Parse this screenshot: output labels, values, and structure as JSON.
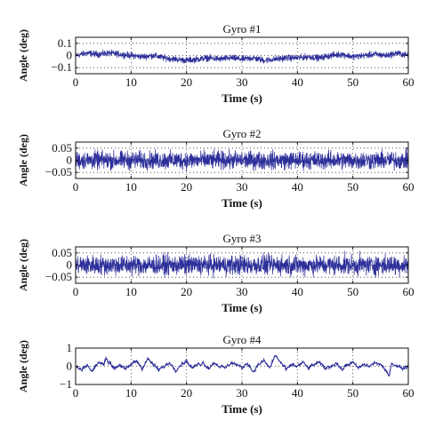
{
  "colors": {
    "series": "#2d2f9a",
    "axis": "#111111",
    "grid": "#333333",
    "background": "#ffffff"
  },
  "chart_data": [
    {
      "type": "line",
      "title": "Gyro #1",
      "xlabel": "Time (s)",
      "ylabel": "Angle (deg)",
      "xlim": [
        0,
        60
      ],
      "ylim": [
        -0.15,
        0.15
      ],
      "xticks": [
        0,
        10,
        20,
        30,
        40,
        50,
        60
      ],
      "xtick_labels": [
        "0",
        "10",
        "20",
        "30",
        "40",
        "50",
        "60"
      ],
      "yticks": [
        -0.1,
        0,
        0.1
      ],
      "ytick_labels": [
        "−0.1",
        "0",
        "0.1"
      ],
      "grid": "dotted",
      "series": [
        {
          "x": [
            0,
            2,
            4,
            6,
            8,
            10,
            12,
            14,
            16,
            18,
            20,
            22,
            24,
            26,
            28,
            30,
            32,
            34,
            36,
            38,
            40,
            42,
            44,
            46,
            48,
            50,
            52,
            54,
            56,
            58,
            60
          ],
          "y": [
            0.0,
            0.02,
            0.01,
            0.02,
            0.01,
            0.0,
            -0.01,
            0.0,
            -0.02,
            -0.03,
            -0.04,
            -0.03,
            -0.02,
            -0.03,
            -0.02,
            -0.03,
            -0.02,
            -0.04,
            -0.03,
            -0.02,
            -0.02,
            -0.01,
            -0.02,
            0.0,
            0.01,
            -0.01,
            0.0,
            0.01,
            0.0,
            0.02,
            0.0
          ],
          "noise_amplitude": 0.04
        }
      ]
    },
    {
      "type": "line",
      "title": "Gyro #2",
      "xlabel": "Time (s)",
      "ylabel": "Angle (deg)",
      "xlim": [
        0,
        60
      ],
      "ylim": [
        -0.075,
        0.075
      ],
      "xticks": [
        0,
        10,
        20,
        30,
        40,
        50,
        60
      ],
      "xtick_labels": [
        "0",
        "10",
        "20",
        "30",
        "40",
        "50",
        "60"
      ],
      "yticks": [
        -0.05,
        0,
        0.05
      ],
      "ytick_labels": [
        "−0.05",
        "0",
        "0.05"
      ],
      "grid": "dotted",
      "series": [
        {
          "x": [
            0,
            60
          ],
          "y": [
            0.0,
            0.0
          ],
          "noise_amplitude": 0.055
        }
      ]
    },
    {
      "type": "line",
      "title": "Gyro #3",
      "xlabel": "Time (s)",
      "ylabel": "Angle (deg)",
      "xlim": [
        0,
        60
      ],
      "ylim": [
        -0.075,
        0.075
      ],
      "xticks": [
        0,
        10,
        20,
        30,
        40,
        50,
        60
      ],
      "xtick_labels": [
        "0",
        "10",
        "20",
        "30",
        "40",
        "50",
        "60"
      ],
      "yticks": [
        -0.05,
        0,
        0.05
      ],
      "ytick_labels": [
        "−0.05",
        "0",
        "0.05"
      ],
      "grid": "dotted",
      "series": [
        {
          "x": [
            0,
            60
          ],
          "y": [
            0.0,
            0.0
          ],
          "noise_amplitude": 0.06
        }
      ]
    },
    {
      "type": "line",
      "title": "Gyro #4",
      "xlabel": "Time (s)",
      "ylabel": "Angle (deg)",
      "xlim": [
        0,
        60
      ],
      "ylim": [
        -1,
        1
      ],
      "xticks": [
        0,
        10,
        20,
        30,
        40,
        50,
        60
      ],
      "xtick_labels": [
        "0",
        "10",
        "20",
        "30",
        "40",
        "50",
        "60"
      ],
      "yticks": [
        -1,
        0,
        1
      ],
      "ytick_labels": [
        "−1",
        "0",
        "1"
      ],
      "grid": "dotted",
      "series": [
        {
          "x": [
            0,
            1,
            2,
            3,
            4,
            5,
            5.5,
            6,
            7,
            8,
            9,
            10,
            11,
            12,
            13,
            14,
            15,
            16,
            17,
            18,
            19,
            20,
            21,
            22,
            23,
            24,
            25,
            26,
            27,
            28,
            29,
            30,
            31,
            32,
            33,
            34,
            35,
            36,
            37,
            38,
            39,
            40,
            41,
            42,
            43,
            44,
            45,
            46,
            47,
            48,
            49,
            50,
            51,
            52,
            53,
            54,
            55,
            56,
            56.5,
            57,
            58,
            59,
            60
          ],
          "y": [
            0.0,
            -0.2,
            0.1,
            -0.3,
            0.2,
            0.1,
            0.5,
            0.2,
            -0.1,
            0.1,
            -0.2,
            0.1,
            0.3,
            -0.1,
            0.4,
            0.1,
            -0.2,
            0.0,
            0.2,
            -0.2,
            0.1,
            0.3,
            -0.1,
            0.1,
            0.2,
            -0.1,
            0.2,
            0.0,
            -0.1,
            0.2,
            0.1,
            -0.1,
            0.2,
            -0.3,
            0.1,
            0.3,
            -0.1,
            0.6,
            0.2,
            -0.2,
            0.1,
            0.0,
            0.2,
            -0.1,
            0.1,
            0.2,
            -0.1,
            0.0,
            0.2,
            -0.2,
            0.1,
            0.2,
            -0.1,
            0.1,
            0.0,
            0.2,
            0.1,
            -0.3,
            -0.5,
            0.2,
            0.0,
            -0.1,
            0.0
          ],
          "noise_amplitude": 0.12
        }
      ]
    }
  ]
}
